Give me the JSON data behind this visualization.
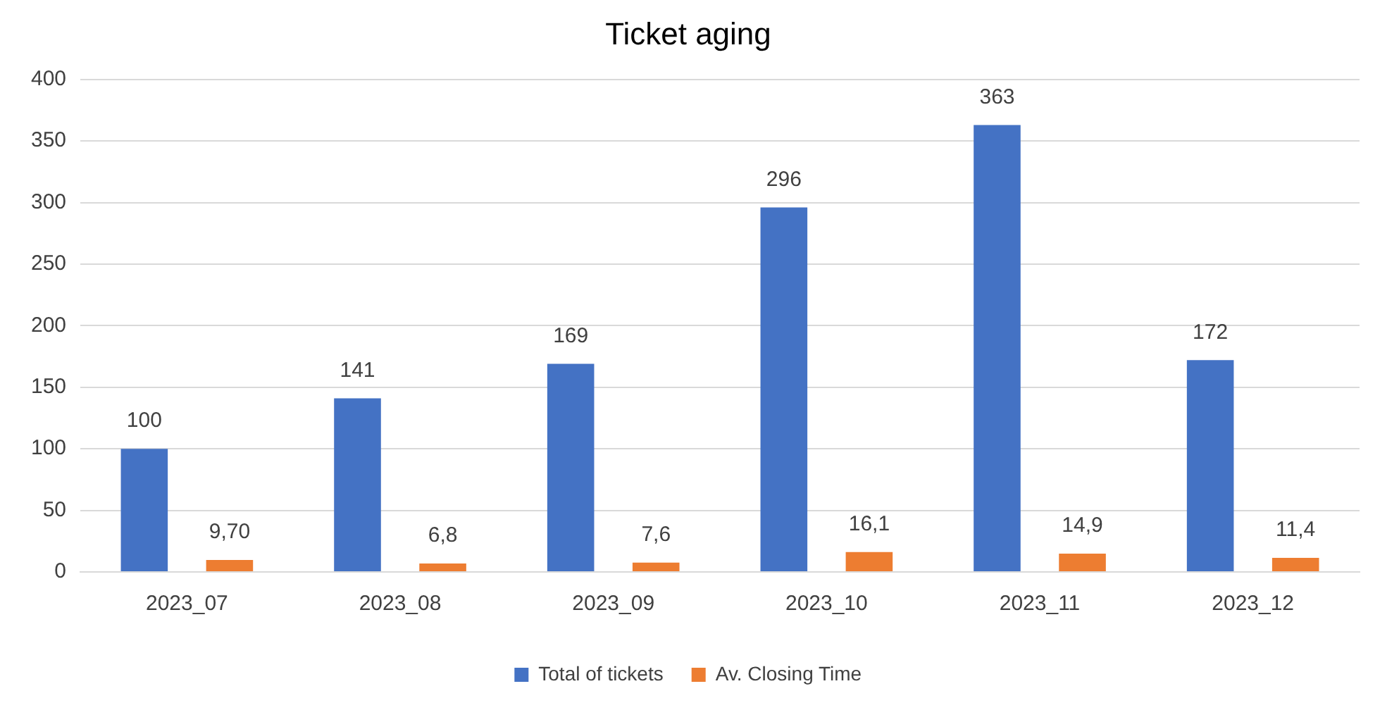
{
  "chart_data": {
    "type": "bar",
    "title": "Ticket aging",
    "categories": [
      "2023_07",
      "2023_08",
      "2023_09",
      "2023_10",
      "2023_11",
      "2023_12"
    ],
    "series": [
      {
        "name": "Total of tickets",
        "color": "#4472c4",
        "values": [
          100,
          141,
          169,
          296,
          363,
          172
        ],
        "value_labels": [
          "100",
          "141",
          "169",
          "296",
          "363",
          "172"
        ]
      },
      {
        "name": "Av. Closing Time",
        "color": "#ed7d31",
        "values": [
          9.7,
          6.8,
          7.6,
          16.1,
          14.9,
          11.4
        ],
        "value_labels": [
          "9,70",
          "6,8",
          "7,6",
          "16,1",
          "14,9",
          "11,4"
        ]
      }
    ],
    "ylim": [
      0,
      400
    ],
    "yticks": [
      0,
      50,
      100,
      150,
      200,
      250,
      300,
      350,
      400
    ],
    "grid": "y",
    "legend": "bottom"
  }
}
